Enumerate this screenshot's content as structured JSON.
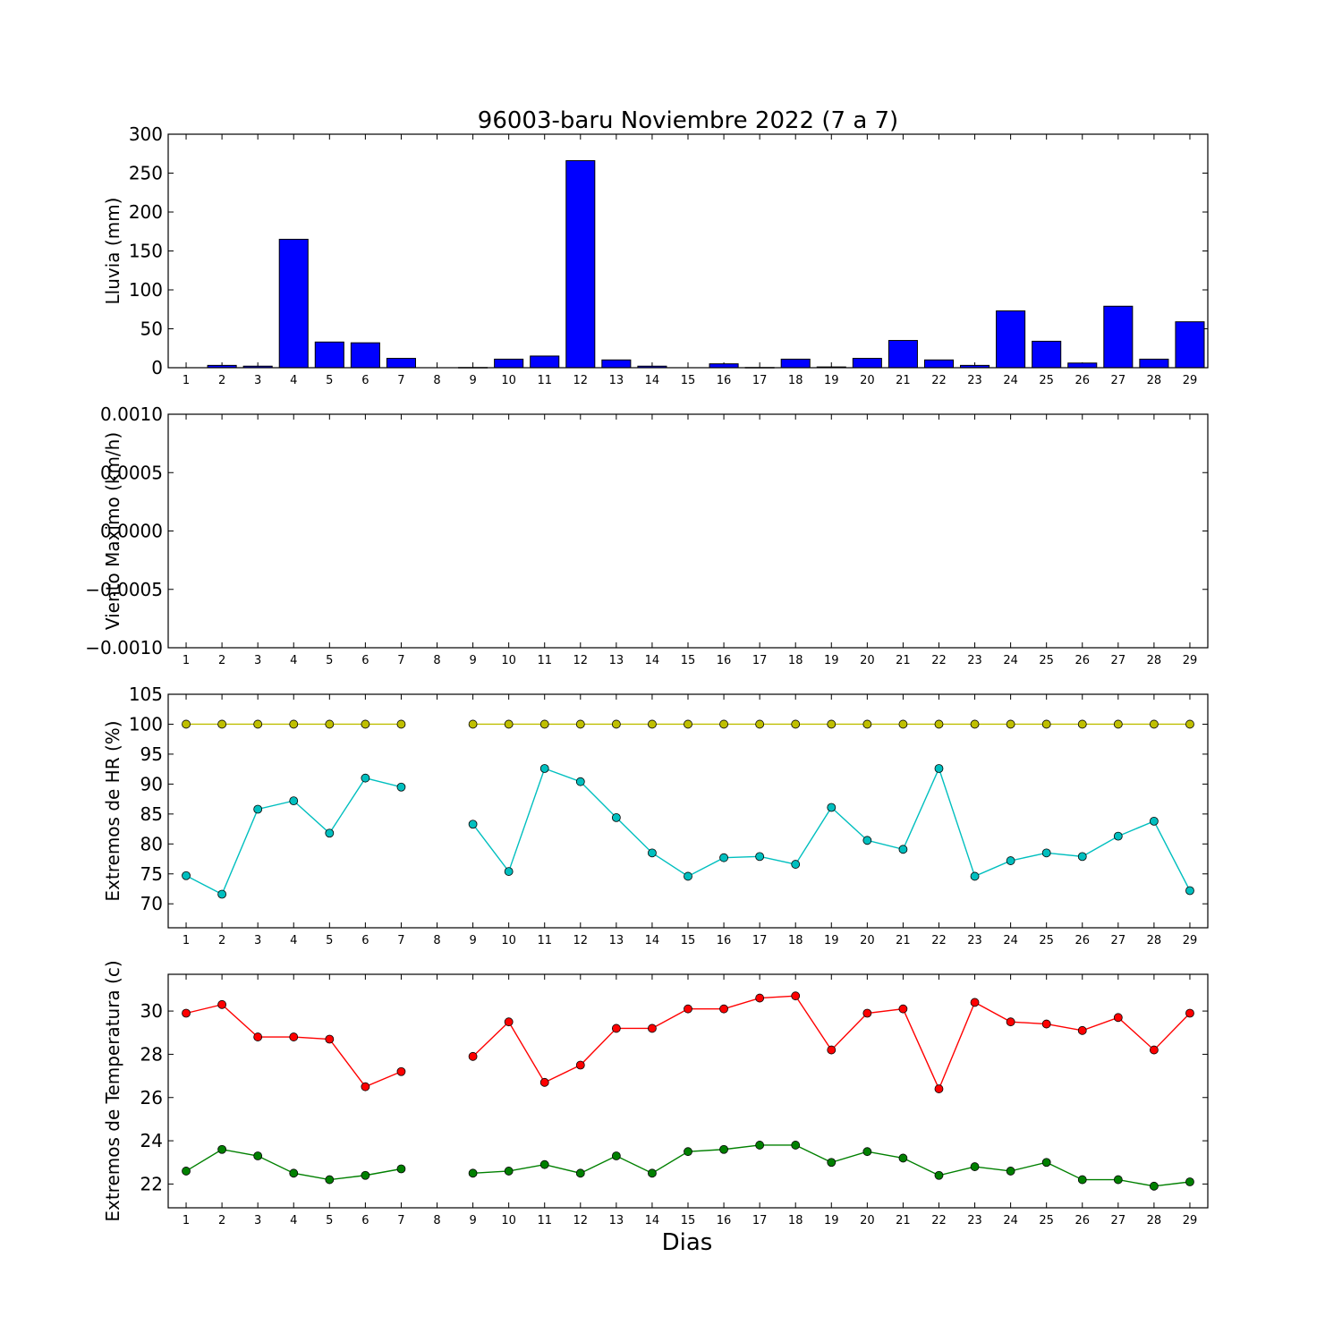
{
  "title": "96003-baru Noviembre 2022  (7 a 7)",
  "xlabel": "Dias",
  "chart_data": [
    {
      "id": "lluvia",
      "type": "bar",
      "ylabel": "Lluvia (mm)",
      "ylim": [
        0,
        300
      ],
      "yticks": [
        0,
        50,
        100,
        150,
        200,
        250,
        300
      ],
      "ytick_labels": [
        "0",
        "50",
        "100",
        "150",
        "200",
        "250",
        "300"
      ],
      "x": [
        1,
        2,
        3,
        4,
        5,
        6,
        7,
        8,
        9,
        10,
        11,
        12,
        13,
        14,
        15,
        16,
        17,
        18,
        19,
        20,
        21,
        22,
        23,
        24,
        25,
        26,
        27,
        28,
        29
      ],
      "series": [
        {
          "color": "#0000ff",
          "values": [
            0,
            3,
            2,
            165,
            33,
            32,
            12,
            0,
            0.3,
            11,
            15,
            266,
            10,
            2,
            0,
            5,
            0.3,
            11,
            1,
            12,
            35,
            10,
            3,
            73,
            34,
            6,
            79,
            11,
            59
          ]
        }
      ]
    },
    {
      "id": "viento",
      "type": "line",
      "ylabel": "Viento Maximo (km/h)",
      "ylim": [
        -0.001,
        0.001
      ],
      "yticks": [
        -0.001,
        -0.0005,
        0,
        0.0005,
        0.001
      ],
      "ytick_labels": [
        "−0.0010",
        "−0.0005",
        "0.0000",
        "0.0005",
        "0.0010"
      ],
      "x": [
        1,
        2,
        3,
        4,
        5,
        6,
        7,
        8,
        9,
        10,
        11,
        12,
        13,
        14,
        15,
        16,
        17,
        18,
        19,
        20,
        21,
        22,
        23,
        24,
        25,
        26,
        27,
        28,
        29
      ],
      "series": []
    },
    {
      "id": "hr",
      "type": "line",
      "ylabel": "Extremos de HR (%)",
      "ylim": [
        66,
        105
      ],
      "yticks": [
        70,
        75,
        80,
        85,
        90,
        95,
        100,
        105
      ],
      "ytick_labels": [
        "70",
        "75",
        "80",
        "85",
        "90",
        "95",
        "100",
        "105"
      ],
      "x": [
        1,
        2,
        3,
        4,
        5,
        6,
        7,
        8,
        9,
        10,
        11,
        12,
        13,
        14,
        15,
        16,
        17,
        18,
        19,
        20,
        21,
        22,
        23,
        24,
        25,
        26,
        27,
        28,
        29
      ],
      "series": [
        {
          "color": "#bfbf00",
          "values": [
            100,
            100,
            100,
            100,
            100,
            100,
            100,
            null,
            100,
            100,
            100,
            100,
            100,
            100,
            100,
            100,
            100,
            100,
            100,
            100,
            100,
            100,
            100,
            100,
            100,
            100,
            100,
            100,
            100
          ]
        },
        {
          "color": "#00bfbf",
          "values": [
            74.7,
            71.6,
            85.8,
            87.2,
            81.8,
            91.0,
            89.5,
            null,
            83.3,
            75.4,
            92.6,
            90.4,
            84.4,
            78.5,
            74.6,
            77.7,
            77.9,
            76.6,
            86.1,
            80.6,
            79.1,
            92.6,
            74.6,
            77.2,
            78.5,
            77.9,
            81.3,
            83.8,
            72.2
          ]
        }
      ]
    },
    {
      "id": "temperatura",
      "type": "line",
      "ylabel": "Extremos de Temperatura (c)",
      "ylim": [
        20.9,
        31.7
      ],
      "yticks": [
        22,
        24,
        26,
        28,
        30
      ],
      "ytick_labels": [
        "22",
        "24",
        "26",
        "28",
        "30"
      ],
      "x": [
        1,
        2,
        3,
        4,
        5,
        6,
        7,
        8,
        9,
        10,
        11,
        12,
        13,
        14,
        15,
        16,
        17,
        18,
        19,
        20,
        21,
        22,
        23,
        24,
        25,
        26,
        27,
        28,
        29
      ],
      "series": [
        {
          "color": "#ff0000",
          "values": [
            29.9,
            30.3,
            28.8,
            28.8,
            28.7,
            26.5,
            27.2,
            null,
            27.9,
            29.5,
            26.7,
            27.5,
            29.2,
            29.2,
            30.1,
            30.1,
            30.6,
            30.7,
            28.2,
            29.9,
            30.1,
            26.4,
            30.4,
            29.5,
            29.4,
            29.1,
            29.7,
            28.2,
            29.9
          ]
        },
        {
          "color": "#008000",
          "values": [
            22.6,
            23.6,
            23.3,
            22.5,
            22.2,
            22.4,
            22.7,
            null,
            22.5,
            22.6,
            22.9,
            22.5,
            23.3,
            22.5,
            23.5,
            23.6,
            23.8,
            23.8,
            23.0,
            23.5,
            23.2,
            22.4,
            22.8,
            22.6,
            23.0,
            22.2,
            22.2,
            21.9,
            22.1
          ]
        }
      ]
    }
  ]
}
